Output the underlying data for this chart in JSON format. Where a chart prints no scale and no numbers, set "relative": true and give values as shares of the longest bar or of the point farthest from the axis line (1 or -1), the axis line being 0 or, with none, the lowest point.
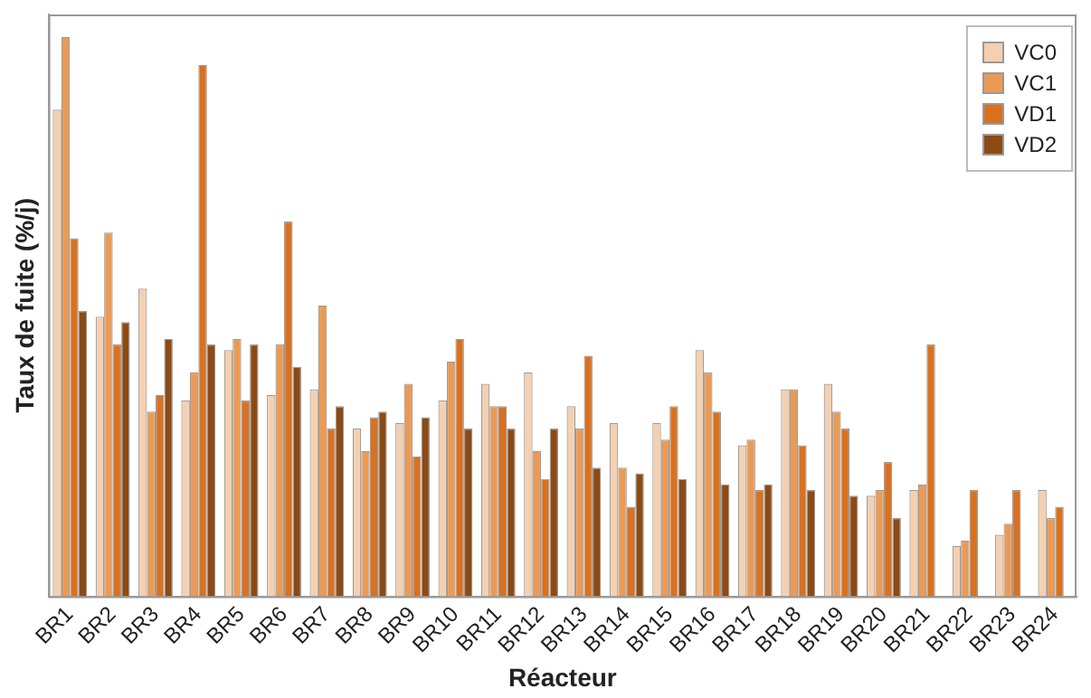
{
  "chart_data": {
    "type": "bar",
    "relative": true,
    "ylabel": "Taux de fuite (%/j)",
    "xlabel": "Réacteur",
    "legend": "top right",
    "grid": false,
    "categories": [
      "BR1",
      "BR2",
      "BR3",
      "BR4",
      "BR5",
      "BR6",
      "BR7",
      "BR8",
      "BR9",
      "BR10",
      "BR11",
      "BR12",
      "BR13",
      "BR14",
      "BR15",
      "BR16",
      "BR17",
      "BR18",
      "BR19",
      "BR20",
      "BR21",
      "BR22",
      "BR23",
      "BR24"
    ],
    "series": [
      {
        "name": "VC0",
        "color": "#f5d0b0",
        "values": [
          0.87,
          0.5,
          0.55,
          0.35,
          0.44,
          0.36,
          0.37,
          0.3,
          0.31,
          0.35,
          0.38,
          0.4,
          0.34,
          0.31,
          0.31,
          0.44,
          0.27,
          0.37,
          0.38,
          0.18,
          0.19,
          0.09,
          0.11,
          0.19
        ]
      },
      {
        "name": "VC1",
        "color": "#eb9a55",
        "values": [
          1,
          0.65,
          0.33,
          0.4,
          0.46,
          0.45,
          0.52,
          0.26,
          0.38,
          0.42,
          0.34,
          0.26,
          0.3,
          0.23,
          0.28,
          0.4,
          0.28,
          0.37,
          0.33,
          0.19,
          0.2,
          0.1,
          0.13,
          0.14
        ]
      },
      {
        "name": "VD1",
        "color": "#d9711f",
        "values": [
          0.64,
          0.45,
          0.36,
          0.95,
          0.35,
          0.67,
          0.3,
          0.32,
          0.25,
          0.46,
          0.34,
          0.21,
          0.43,
          0.16,
          0.34,
          0.33,
          0.19,
          0.27,
          0.3,
          0.24,
          0.45,
          0.19,
          0.19,
          0.16
        ]
      },
      {
        "name": "VD2",
        "color": "#8c4a14",
        "values": [
          0.51,
          0.49,
          0.46,
          0.45,
          0.45,
          0.41,
          0.34,
          0.33,
          0.32,
          0.3,
          0.3,
          0.3,
          0.23,
          0.22,
          0.21,
          0.2,
          0.2,
          0.19,
          0.18,
          0.14,
          null,
          null,
          null,
          null
        ]
      }
    ]
  }
}
